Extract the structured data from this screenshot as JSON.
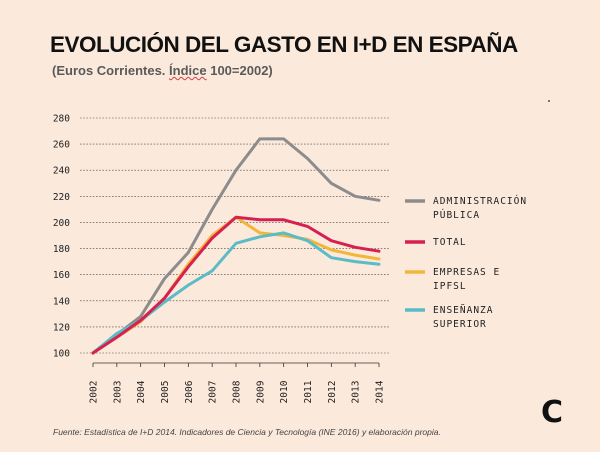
{
  "header": {
    "title": "EVOLUCIÓN DEL GASTO EN I+D EN ESPAÑA",
    "subtitle_pre": "(Euros Corrientes. ",
    "subtitle_ul": "Índice",
    "subtitle_post": " 100=2002)"
  },
  "footnote": "Fuente: Estadística de I+D 2014. Indicadores de Ciencia y Tecnología (INE 2016) y elaboración propia.",
  "logo": "C",
  "colors": {
    "background": "#fbe9dc",
    "administracion": "#8c8c8c",
    "total": "#d62150",
    "empresas": "#f2b63c",
    "ensenanza": "#5bbcc6"
  },
  "chart_data": {
    "type": "line",
    "x": [
      "2002",
      "2003",
      "2004",
      "2005",
      "2006",
      "2007",
      "2008",
      "2009",
      "2010",
      "2011",
      "2012",
      "2013",
      "2014"
    ],
    "ylim": [
      100,
      280
    ],
    "yticks": [
      100,
      120,
      140,
      160,
      180,
      200,
      220,
      240,
      260,
      280
    ],
    "grid": true,
    "legend_position": "right",
    "series": [
      {
        "name_lines": [
          "ADMINISTRACIÓN",
          "PÚBLICA"
        ],
        "color": "#8c8c8c",
        "values": [
          100,
          114,
          128,
          157,
          177,
          210,
          240,
          264,
          264,
          249,
          230,
          220,
          217
        ]
      },
      {
        "name_lines": [
          "TOTAL"
        ],
        "color": "#d62150",
        "values": [
          100,
          112,
          125,
          142,
          166,
          188,
          204,
          202,
          202,
          197,
          186,
          181,
          178
        ]
      },
      {
        "name_lines": [
          "EMPRESAS E",
          "IPFSL"
        ],
        "color": "#f2b63c",
        "values": [
          100,
          112,
          124,
          142,
          168,
          190,
          204,
          192,
          190,
          187,
          179,
          175,
          172
        ]
      },
      {
        "name_lines": [
          "ENSEÑANZA",
          "SUPERIOR"
        ],
        "color": "#5bbcc6",
        "values": [
          100,
          115,
          125,
          139,
          152,
          163,
          184,
          189,
          192,
          186,
          173,
          170,
          168
        ]
      }
    ]
  }
}
